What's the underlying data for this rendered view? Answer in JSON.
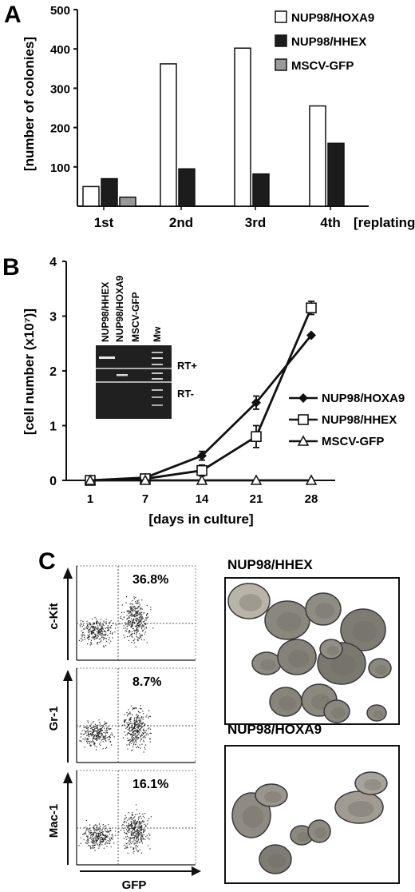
{
  "panels": {
    "a": "A",
    "b": "B",
    "c": "C"
  },
  "chart_data": [
    {
      "type": "bar",
      "panel": "A",
      "title": "",
      "xlabel": "[replating]",
      "ylabel": "[number of colonies]",
      "categories": [
        "1st",
        "2nd",
        "3rd",
        "4th"
      ],
      "ylim": [
        0,
        500
      ],
      "yticks": [
        "500",
        "400",
        "300",
        "200",
        "100"
      ],
      "legend_position": "top-right",
      "series": [
        {
          "name": "NUP98/HOXA9",
          "color": "#ffffff",
          "values": [
            50,
            362,
            402,
            255
          ]
        },
        {
          "name": "NUP98/HHEX",
          "color": "#1c1c1c",
          "values": [
            70,
            95,
            82,
            160
          ]
        },
        {
          "name": "MSCV-GFP",
          "color": "#9a9a9a",
          "values": [
            23,
            0,
            0,
            0
          ]
        }
      ]
    },
    {
      "type": "line",
      "panel": "B",
      "title": "",
      "xlabel": "[days in culture]",
      "ylabel": "[cell number (x10⁷)]",
      "x": [
        1,
        7,
        14,
        21,
        28
      ],
      "ylim": [
        0,
        4
      ],
      "yticks": [
        "0",
        "1",
        "2",
        "3",
        "4"
      ],
      "legend_position": "right",
      "series": [
        {
          "name": "NUP98/HOXA9",
          "marker": "diamond-filled",
          "values": [
            0,
            0.05,
            0.45,
            1.42,
            2.65
          ],
          "errors": [
            0,
            0,
            0.08,
            0.12,
            0
          ]
        },
        {
          "name": "NUP98/HHEX",
          "marker": "square-open",
          "values": [
            0,
            0.03,
            0.18,
            0.8,
            3.15
          ],
          "errors": [
            0,
            0,
            0.1,
            0.2,
            0.12
          ]
        },
        {
          "name": "MSCV-GFP",
          "marker": "triangle-open",
          "values": [
            0,
            0,
            0,
            0,
            0
          ],
          "errors": [
            0,
            0,
            0,
            0,
            0
          ]
        }
      ]
    }
  ],
  "gel": {
    "lanes": [
      "NUP98/HHEX",
      "NUP98/HOXA9",
      "MSCV-GFP",
      "Mw"
    ],
    "rows": [
      "RT+",
      "RT-"
    ]
  },
  "flow": {
    "x_axis": "GFP",
    "plots": [
      {
        "marker": "c-Kit",
        "percent": "36.8%"
      },
      {
        "marker": "Gr-1",
        "percent": "8.7%"
      },
      {
        "marker": "Mac-1",
        "percent": "16.1%"
      }
    ]
  },
  "micrographs": [
    {
      "label": "NUP98/HHEX"
    },
    {
      "label": "NUP98/HOXA9"
    }
  ]
}
